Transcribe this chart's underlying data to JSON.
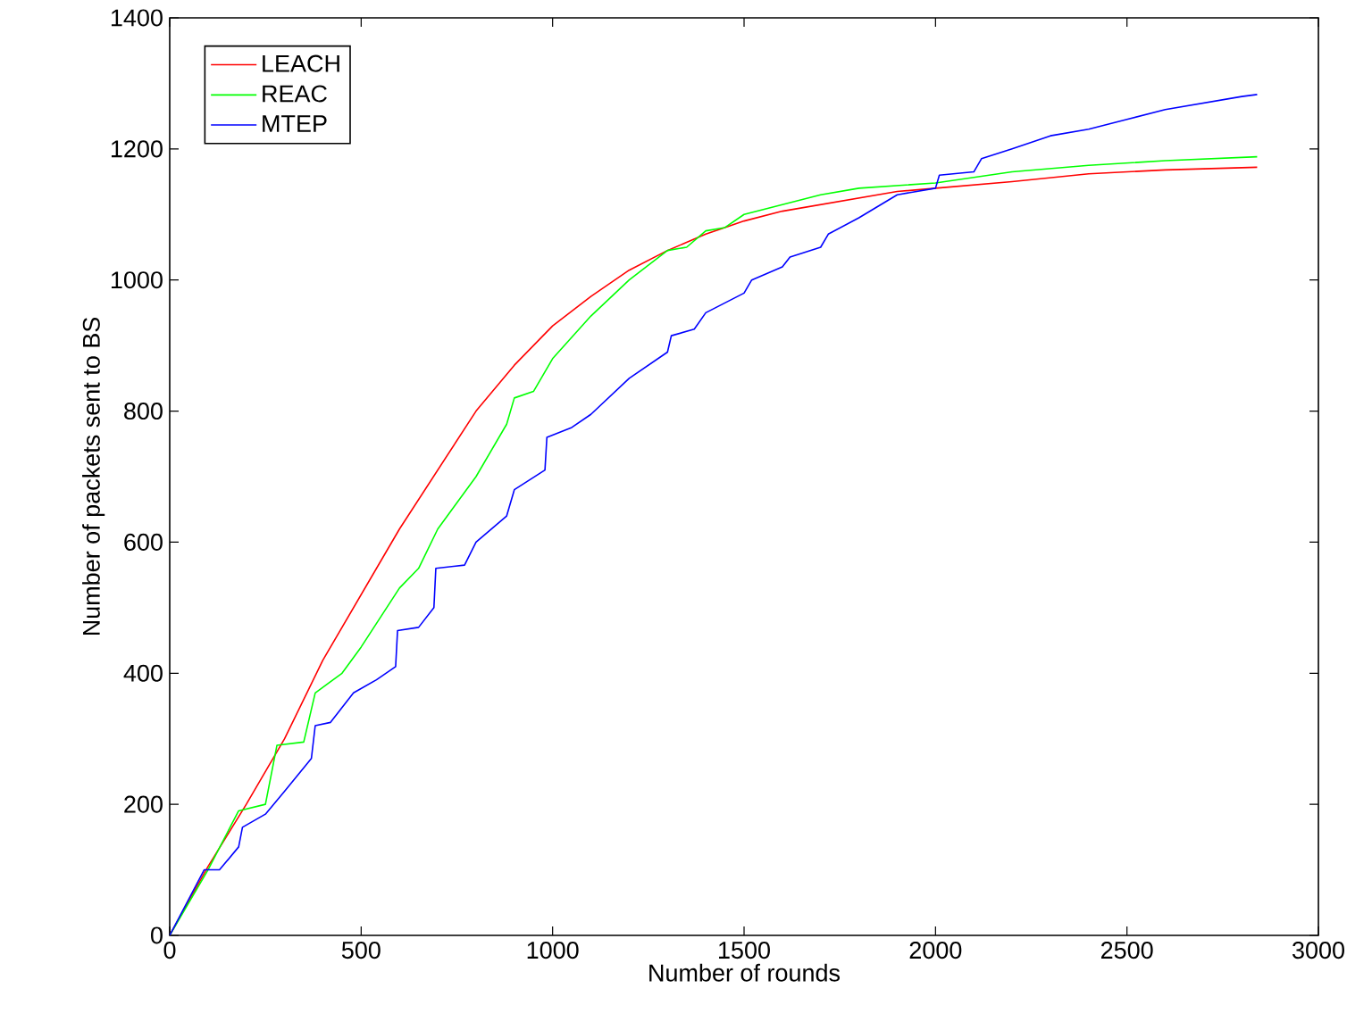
{
  "chart_data": {
    "type": "line",
    "xlabel": "Number of rounds",
    "ylabel": "Number of packets sent to BS",
    "xlim": [
      0,
      3000
    ],
    "ylim": [
      0,
      1400
    ],
    "xticks": [
      0,
      500,
      1000,
      1500,
      2000,
      2500,
      3000
    ],
    "yticks": [
      0,
      200,
      400,
      600,
      800,
      1000,
      1200,
      1400
    ],
    "grid": false,
    "legend": "top left",
    "marker": "none",
    "line_style": "solid",
    "series": [
      {
        "name": "LEACH",
        "color": "#ff0000",
        "x": [
          0,
          100,
          200,
          300,
          400,
          500,
          600,
          700,
          800,
          900,
          1000,
          1100,
          1200,
          1300,
          1400,
          1500,
          1600,
          1700,
          1800,
          1900,
          2000,
          2200,
          2400,
          2600,
          2840
        ],
        "values": [
          0,
          105,
          200,
          300,
          420,
          520,
          620,
          710,
          800,
          870,
          930,
          975,
          1015,
          1045,
          1070,
          1090,
          1105,
          1115,
          1125,
          1135,
          1140,
          1150,
          1162,
          1168,
          1172
        ]
      },
      {
        "name": "REAC",
        "color": "#00ff00",
        "x": [
          0,
          100,
          180,
          250,
          280,
          350,
          380,
          450,
          500,
          600,
          650,
          700,
          800,
          880,
          900,
          950,
          1000,
          1100,
          1200,
          1300,
          1350,
          1400,
          1450,
          1500,
          1600,
          1700,
          1800,
          2000,
          2200,
          2400,
          2600,
          2840
        ],
        "values": [
          0,
          100,
          190,
          200,
          290,
          295,
          370,
          400,
          440,
          530,
          560,
          620,
          700,
          780,
          820,
          830,
          880,
          945,
          1000,
          1045,
          1050,
          1075,
          1080,
          1100,
          1115,
          1130,
          1140,
          1148,
          1165,
          1175,
          1182,
          1188
        ]
      },
      {
        "name": "MTEP",
        "color": "#0000ff",
        "x": [
          0,
          90,
          130,
          180,
          190,
          250,
          300,
          370,
          380,
          420,
          480,
          540,
          590,
          595,
          650,
          690,
          695,
          770,
          800,
          880,
          900,
          980,
          985,
          1050,
          1100,
          1200,
          1300,
          1310,
          1370,
          1400,
          1500,
          1520,
          1600,
          1620,
          1700,
          1720,
          1800,
          1900,
          2000,
          2010,
          2100,
          2120,
          2200,
          2300,
          2400,
          2500,
          2600,
          2700,
          2800,
          2840
        ],
        "values": [
          0,
          100,
          100,
          135,
          165,
          185,
          220,
          270,
          320,
          325,
          370,
          390,
          410,
          465,
          470,
          500,
          560,
          565,
          600,
          640,
          680,
          710,
          760,
          775,
          795,
          850,
          890,
          915,
          925,
          950,
          980,
          1000,
          1020,
          1035,
          1050,
          1070,
          1095,
          1130,
          1140,
          1160,
          1165,
          1185,
          1200,
          1220,
          1230,
          1245,
          1260,
          1270,
          1280,
          1283
        ]
      }
    ]
  }
}
